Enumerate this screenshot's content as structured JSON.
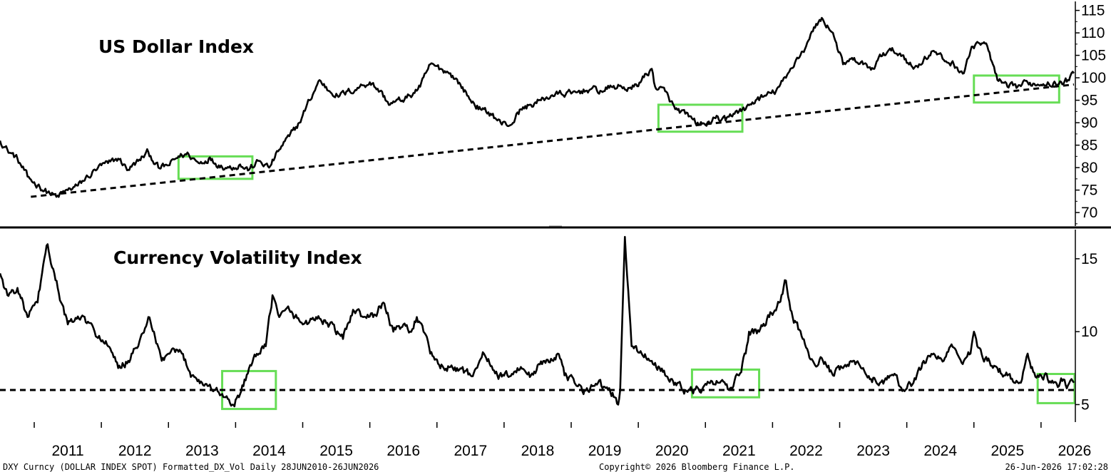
{
  "colors": {
    "line": "#000000",
    "highlight": "#66dd55",
    "background": "#ffffff",
    "divider": "#000000"
  },
  "footer": {
    "left": "DXY Curncy (DOLLAR INDEX SPOT) Formatted_DX_Vol Daily 28JUN2010-26JUN2026",
    "center": "Copyright© 2026 Bloomberg Finance L.P.",
    "right": "26-Jun-2026 17:02:28"
  },
  "x_axis": {
    "range": [
      2010.49,
      2026.49
    ],
    "labels": [
      "2011",
      "2012",
      "2013",
      "2014",
      "2015",
      "2016",
      "2017",
      "2018",
      "2019",
      "2020",
      "2021",
      "2022",
      "2023",
      "2024",
      "2025",
      "2026"
    ]
  },
  "chart_data": [
    {
      "type": "line",
      "title": "US Dollar Index",
      "ylim": [
        67,
        117
      ],
      "yticks": [
        70,
        75,
        80,
        85,
        90,
        95,
        100,
        105,
        110,
        115
      ],
      "grid": false,
      "y_axis_position": "right",
      "x": [
        2010.49,
        2010.6,
        2010.75,
        2010.9,
        2011.05,
        2011.2,
        2011.33,
        2011.5,
        2011.65,
        2011.8,
        2011.95,
        2012.1,
        2012.25,
        2012.4,
        2012.55,
        2012.7,
        2012.85,
        2013.0,
        2013.15,
        2013.3,
        2013.45,
        2013.6,
        2013.75,
        2013.9,
        2014.05,
        2014.2,
        2014.35,
        2014.5,
        2014.65,
        2014.8,
        2014.95,
        2015.1,
        2015.25,
        2015.4,
        2015.55,
        2015.7,
        2015.85,
        2016.0,
        2016.15,
        2016.3,
        2016.45,
        2016.6,
        2016.75,
        2016.9,
        2017.05,
        2017.2,
        2017.35,
        2017.5,
        2017.65,
        2017.8,
        2017.95,
        2018.1,
        2018.25,
        2018.4,
        2018.55,
        2018.7,
        2018.85,
        2019.0,
        2019.15,
        2019.3,
        2019.45,
        2019.6,
        2019.75,
        2019.9,
        2020.05,
        2020.2,
        2020.25,
        2020.4,
        2020.55,
        2020.7,
        2020.85,
        2021.0,
        2021.15,
        2021.3,
        2021.45,
        2021.6,
        2021.75,
        2021.9,
        2022.05,
        2022.2,
        2022.35,
        2022.5,
        2022.65,
        2022.75,
        2022.9,
        2023.05,
        2023.2,
        2023.35,
        2023.5,
        2023.65,
        2023.8,
        2023.95,
        2024.1,
        2024.25,
        2024.4,
        2024.55,
        2024.7,
        2024.85,
        2024.95,
        2025.05,
        2025.2,
        2025.35,
        2025.5,
        2025.65,
        2025.8,
        2025.95,
        2026.1,
        2026.25,
        2026.4,
        2026.49
      ],
      "y": [
        86,
        84,
        82,
        78,
        76,
        74.5,
        73.5,
        75,
        76,
        78,
        80,
        81,
        82,
        79.5,
        81.5,
        83.5,
        80,
        80.5,
        82.5,
        83,
        81,
        82,
        80.5,
        80,
        80.5,
        79.5,
        81.5,
        80,
        84,
        87,
        90,
        95,
        99.5,
        97,
        96,
        97,
        98,
        99,
        97,
        94,
        95,
        96,
        98,
        103,
        102,
        101,
        98.5,
        95,
        93,
        92,
        90,
        89.5,
        93,
        94,
        95,
        96,
        96.5,
        96.5,
        97,
        97.5,
        97,
        98,
        98,
        97.5,
        99.5,
        102,
        98,
        97,
        93,
        92,
        90,
        89.5,
        91,
        90.5,
        92.5,
        93,
        95,
        96,
        97,
        100,
        104,
        107,
        112,
        113,
        110,
        103,
        104,
        103,
        102,
        105.5,
        106,
        105,
        102,
        104,
        106,
        104,
        103,
        101,
        106,
        108,
        107,
        99.5,
        98,
        98,
        99,
        98.5,
        99,
        98.5,
        99.5,
        101
      ]
    },
    {
      "type": "line",
      "title": "Currency Volatility Index",
      "ylim": [
        3.8,
        17
      ],
      "yticks": [
        5,
        10,
        15
      ],
      "grid": false,
      "y_axis_position": "right",
      "x": [
        2010.49,
        2010.6,
        2010.75,
        2010.9,
        2011.05,
        2011.1,
        2011.2,
        2011.3,
        2011.4,
        2011.5,
        2011.7,
        2011.9,
        2012.1,
        2012.25,
        2012.4,
        2012.55,
        2012.7,
        2012.9,
        2013.0,
        2013.2,
        2013.35,
        2013.5,
        2013.7,
        2013.85,
        2013.95,
        2014.05,
        2014.2,
        2014.35,
        2014.45,
        2014.55,
        2014.65,
        2014.8,
        2015.0,
        2015.2,
        2015.4,
        2015.6,
        2015.75,
        2015.9,
        2016.05,
        2016.2,
        2016.35,
        2016.5,
        2016.6,
        2016.7,
        2016.8,
        2016.9,
        2017.1,
        2017.3,
        2017.5,
        2017.7,
        2017.9,
        2018.05,
        2018.2,
        2018.4,
        2018.6,
        2018.8,
        2018.9,
        2019.05,
        2019.2,
        2019.4,
        2019.55,
        2019.65,
        2019.7,
        2019.73,
        2019.8,
        2019.9,
        2020.05,
        2020.2,
        2020.4,
        2020.55,
        2020.7,
        2020.8,
        2020.95,
        2021.05,
        2021.2,
        2021.35,
        2021.5,
        2021.6,
        2021.65,
        2021.8,
        2021.95,
        2022.1,
        2022.2,
        2022.3,
        2022.45,
        2022.6,
        2022.75,
        2022.9,
        2023.05,
        2023.2,
        2023.4,
        2023.6,
        2023.8,
        2023.95,
        2024.1,
        2024.25,
        2024.4,
        2024.55,
        2024.65,
        2024.75,
        2024.85,
        2024.95,
        2025.0,
        2025.05,
        2025.2,
        2025.35,
        2025.5,
        2025.6,
        2025.7,
        2025.75,
        2025.8,
        2025.85,
        2025.95,
        2026.05,
        2026.15,
        2026.25,
        2026.3,
        2026.4,
        2026.49
      ],
      "y": [
        14,
        12.5,
        13,
        11,
        12,
        13.5,
        16,
        14,
        12,
        10.5,
        11,
        10,
        9,
        7.5,
        8,
        9,
        11,
        8,
        8.5,
        8.5,
        7,
        6.5,
        6,
        5.5,
        5,
        5.5,
        7.5,
        8.5,
        9,
        12.5,
        11,
        11.5,
        10.5,
        11,
        10.5,
        9.5,
        11.5,
        11,
        11,
        12,
        10,
        10.5,
        10,
        11,
        10,
        8.5,
        7.5,
        7.5,
        7,
        8.5,
        7,
        7,
        7.5,
        7,
        8,
        8.5,
        7,
        6.5,
        6,
        6.5,
        6,
        5.5,
        5,
        6,
        16.5,
        9,
        8.5,
        8,
        7,
        6.5,
        6,
        6,
        6,
        6.5,
        6.5,
        6,
        7,
        8.5,
        10,
        10,
        11,
        12,
        13.5,
        11,
        9.5,
        8,
        8,
        7,
        7.5,
        8,
        7,
        6.5,
        7,
        6,
        6.5,
        8,
        8.5,
        8,
        9,
        8.5,
        8,
        8.5,
        10,
        9,
        8,
        7.5,
        7,
        6.5,
        6.5,
        7.5,
        8.5,
        7.5,
        7,
        7,
        6.5,
        6.2,
        6.8,
        6.3,
        6.5
      ]
    }
  ],
  "highlight_boxes": [
    {
      "panel": 0,
      "x0": 2013.15,
      "x1": 2014.25,
      "y0": 77.5,
      "y1": 82.5
    },
    {
      "panel": 0,
      "x0": 2020.3,
      "x1": 2021.55,
      "y0": 88,
      "y1": 94
    },
    {
      "panel": 0,
      "x0": 2025.0,
      "x1": 2026.27,
      "y0": 94.5,
      "y1": 100.5
    },
    {
      "panel": 1,
      "x0": 2013.8,
      "x1": 2014.6,
      "y0": 4.7,
      "y1": 7.3
    },
    {
      "panel": 1,
      "x0": 2020.8,
      "x1": 2021.8,
      "y0": 5.5,
      "y1": 7.4
    },
    {
      "panel": 1,
      "x0": 2025.95,
      "x1": 2026.5,
      "y0": 5.1,
      "y1": 7.1
    }
  ],
  "trend_lines": [
    {
      "panel": 0,
      "x": [
        2010.95,
        2026.49
      ],
      "y": [
        73.5,
        98.5
      ]
    },
    {
      "panel": 1,
      "x": [
        2010.49,
        2026.49
      ],
      "y": [
        6,
        6
      ]
    }
  ]
}
